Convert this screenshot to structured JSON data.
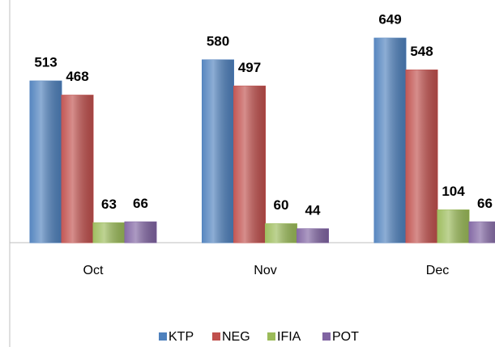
{
  "chart_data": {
    "type": "bar",
    "categories": [
      "Oct",
      "Nov",
      "Dec"
    ],
    "series": [
      {
        "name": "KTP",
        "color": "#4f81bd",
        "values": [
          513,
          580,
          649
        ]
      },
      {
        "name": "NEG",
        "color": "#c0504d",
        "values": [
          468,
          497,
          548
        ]
      },
      {
        "name": "IFIA",
        "color": "#9bbb59",
        "values": [
          63,
          60,
          104
        ]
      },
      {
        "name": "POT",
        "color": "#8064a2",
        "values": [
          66,
          44,
          66
        ]
      }
    ],
    "ylim": [
      0,
      770
    ],
    "legend": "bottom"
  }
}
